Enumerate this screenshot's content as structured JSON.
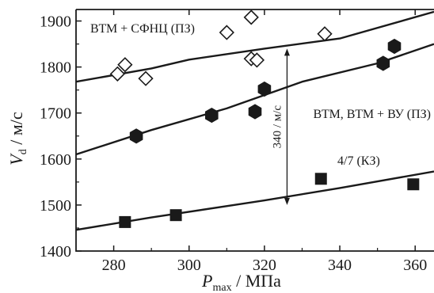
{
  "chart_data": {
    "type": "scatter",
    "xlabel_main": "P",
    "xlabel_sub": "max",
    "xlabel_unit": " / МПа",
    "ylabel_main": "V",
    "ylabel_sub": "d",
    "ylabel_unit": " / м/с",
    "xlim": [
      270,
      365
    ],
    "ylim": [
      1400,
      1925
    ],
    "xticks": [
      280,
      300,
      320,
      340,
      360
    ],
    "yticks": [
      1400,
      1500,
      1600,
      1700,
      1800,
      1900
    ],
    "grid": false,
    "series": [
      {
        "name": "ВТМ + СФНЦ (ПЗ)",
        "marker": "diamond-open",
        "points": [
          [
            281,
            1785
          ],
          [
            283,
            1805
          ],
          [
            288.5,
            1775
          ],
          [
            310,
            1875
          ],
          [
            316.5,
            1908
          ],
          [
            316.5,
            1818
          ],
          [
            318,
            1815
          ],
          [
            336,
            1872
          ]
        ],
        "fit_line": [
          [
            270,
            1768
          ],
          [
            290,
            1797
          ],
          [
            300,
            1816
          ],
          [
            320,
            1840
          ],
          [
            340,
            1862
          ],
          [
            365,
            1920
          ]
        ]
      },
      {
        "name": "ВТМ, ВТМ + ВУ (ПЗ)",
        "marker": "hexagon-filled",
        "points": [
          [
            286,
            1650
          ],
          [
            306,
            1695
          ],
          [
            317.5,
            1703
          ],
          [
            320,
            1752
          ],
          [
            351.5,
            1808
          ],
          [
            354.5,
            1845
          ]
        ],
        "fit_line": [
          [
            270,
            1610
          ],
          [
            290,
            1663
          ],
          [
            310,
            1710
          ],
          [
            330,
            1768
          ],
          [
            350,
            1808
          ],
          [
            365,
            1850
          ]
        ]
      },
      {
        "name": "4/7 (КЗ)",
        "marker": "square-filled",
        "points": [
          [
            283,
            1463
          ],
          [
            296.5,
            1478
          ],
          [
            335,
            1557
          ],
          [
            359.5,
            1545
          ]
        ],
        "fit_line": [
          [
            270,
            1446
          ],
          [
            290,
            1473
          ],
          [
            320,
            1510
          ],
          [
            340,
            1537
          ],
          [
            365,
            1573
          ]
        ]
      }
    ],
    "annotation": {
      "text": "340 / м/с",
      "x": 326,
      "y_from": 1500,
      "y_to": 1840
    }
  },
  "colors": {
    "ink": "#1a1a1a",
    "background": "#ffffff"
  }
}
